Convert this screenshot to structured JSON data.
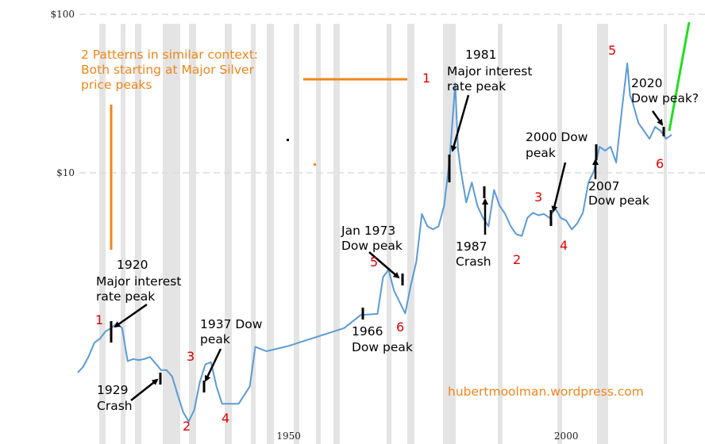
{
  "chart_data": {
    "type": "line",
    "log_scale": true,
    "grid": true,
    "xlim": [
      1898,
      2025
    ],
    "xticks": [
      1950,
      2000
    ],
    "ylim": [
      0.195,
      123
    ],
    "yticks": [
      {
        "value": 100,
        "label": "$100"
      },
      {
        "value": 10,
        "label": "$10"
      }
    ],
    "series": [
      {
        "name": "Silver price",
        "color": "#5b9bd5",
        "x": [
          1912,
          1913,
          1914,
          1915,
          1916,
          1917,
          1918,
          1919,
          1920,
          1921,
          1922,
          1923,
          1924,
          1925,
          1926,
          1927,
          1928,
          1929,
          1930,
          1931,
          1932,
          1933,
          1934,
          1935,
          1936,
          1937,
          1938,
          1941,
          1943,
          1944,
          1946,
          1950,
          1960,
          1963,
          1966,
          1967,
          1968,
          1969,
          1971,
          1972,
          1973,
          1974,
          1975,
          1976,
          1977,
          1978,
          1979,
          1980,
          1980.5,
          1981,
          1982,
          1983,
          1984,
          1985,
          1986,
          1987,
          1988,
          1989,
          1990,
          1991,
          1992,
          1993,
          1994,
          1995,
          1996,
          1997,
          1998,
          1999,
          2000,
          2001,
          2002,
          2003,
          2004,
          2005,
          2006,
          2007,
          2008,
          2009,
          2010,
          2011,
          2011.5,
          2012,
          2013,
          2014,
          2015,
          2016,
          2017,
          2018,
          2019
        ],
        "values": [
          0.55,
          0.6,
          0.7,
          0.85,
          0.9,
          1.0,
          1.05,
          1.12,
          1.05,
          0.65,
          0.67,
          0.66,
          0.67,
          0.69,
          0.63,
          0.57,
          0.57,
          0.52,
          0.4,
          0.31,
          0.27,
          0.32,
          0.48,
          0.62,
          0.64,
          0.45,
          0.35,
          0.35,
          0.45,
          0.8,
          0.75,
          0.81,
          1.05,
          1.27,
          1.29,
          2.2,
          2.45,
          1.8,
          1.3,
          1.95,
          2.75,
          5.5,
          4.6,
          4.4,
          4.6,
          6.2,
          12.3,
          36.6,
          14,
          10.4,
          6.5,
          8.7,
          6.2,
          5.2,
          4.6,
          7.8,
          6.2,
          5.5,
          4.6,
          4.1,
          4.0,
          5.2,
          5.6,
          5.4,
          5.5,
          5.2,
          6.0,
          5.2,
          5.0,
          4.4,
          4.8,
          5.6,
          8.7,
          10.3,
          14.6,
          13.8,
          14.6,
          11.6,
          24.5,
          49,
          30.8,
          27.5,
          20.6,
          18.4,
          16.4,
          19.5,
          18.4,
          16.4,
          17.4
        ]
      }
    ],
    "note": [
      "2 Patterns in similar context:",
      "Both starting at Major Silver",
      "price peaks"
    ],
    "credit": "hubertmoolman.wordpress.com",
    "annotations": [
      {
        "lines": [
          "1920",
          "Major interest",
          "rate peak"
        ]
      },
      {
        "lines": [
          "1929",
          "Crash"
        ]
      },
      {
        "lines": [
          "1937 Dow",
          "peak"
        ]
      },
      {
        "lines": [
          "1966",
          "Dow peak"
        ]
      },
      {
        "lines": [
          "Jan 1973",
          "Dow peak"
        ]
      },
      {
        "lines": [
          "1981",
          "Major interest",
          "rate peak"
        ]
      },
      {
        "lines": [
          "1987",
          "Crash"
        ]
      },
      {
        "lines": [
          "2000 Dow",
          "peak"
        ]
      },
      {
        "lines": [
          "2007",
          "Dow peak"
        ]
      },
      {
        "lines": [
          "2020",
          "Dow peak?"
        ]
      }
    ],
    "wave_labels": [
      "1",
      "2",
      "3",
      "4",
      "5",
      "6",
      "1",
      "2",
      "3",
      "4",
      "5",
      "6"
    ]
  }
}
